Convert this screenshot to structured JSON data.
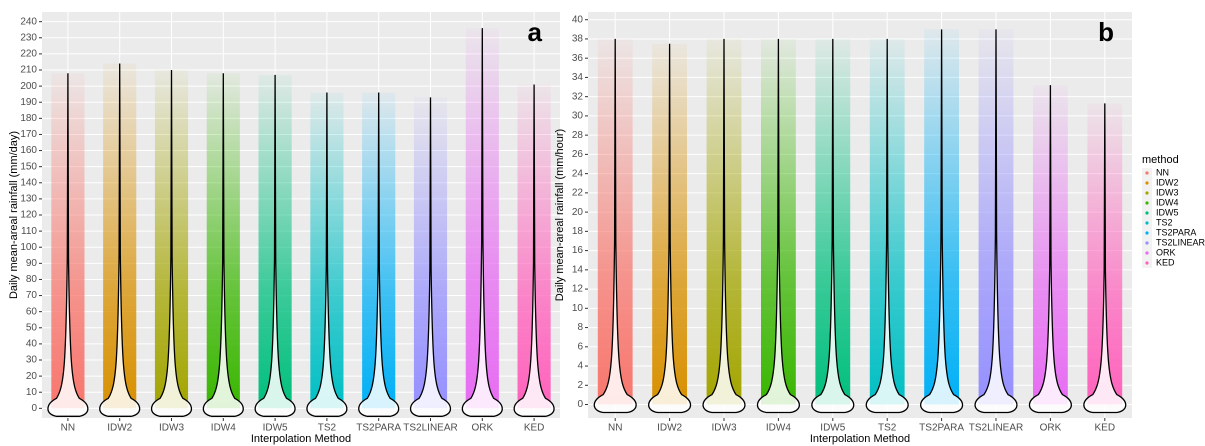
{
  "chart_data": [
    {
      "type": "violin",
      "annotation": "a",
      "x_label": "Interpolation Method",
      "y_label": "Daily mean-areal rainfall (mm/day)",
      "categories": [
        "NN",
        "IDW2",
        "IDW3",
        "IDW4",
        "IDW5",
        "TS2",
        "TS2PARA",
        "TS2LINEAR",
        "ORK",
        "KED"
      ],
      "colors": [
        "#F8766D",
        "#D89000",
        "#A3A500",
        "#39B600",
        "#00BF7D",
        "#00BFC4",
        "#00B0F6",
        "#9590FF",
        "#E76BF3",
        "#FF62BC"
      ],
      "values": [
        208,
        214,
        210,
        208,
        207,
        196,
        196,
        193,
        236,
        201
      ],
      "ylim": [
        -6,
        246
      ],
      "yticks": [
        0,
        10,
        20,
        30,
        40,
        50,
        60,
        70,
        80,
        90,
        100,
        110,
        120,
        130,
        140,
        150,
        160,
        170,
        180,
        190,
        200,
        210,
        220,
        230,
        240
      ],
      "grid": true
    },
    {
      "type": "violin",
      "annotation": "b",
      "x_label": "Interpolation Method",
      "y_label": "Daily mean-areal rainfall (mm/hour)",
      "categories": [
        "NN",
        "IDW2",
        "IDW3",
        "IDW4",
        "IDW5",
        "TS2",
        "TS2PARA",
        "TS2LINEAR",
        "ORK",
        "KED"
      ],
      "colors": [
        "#F8766D",
        "#D89000",
        "#A3A500",
        "#39B600",
        "#00BF7D",
        "#00BFC4",
        "#00B0F6",
        "#9590FF",
        "#E76BF3",
        "#FF62BC"
      ],
      "values": [
        38,
        37.5,
        38,
        38,
        38,
        38,
        39,
        39,
        33.2,
        31.3
      ],
      "ylim": [
        -1.4,
        40.8
      ],
      "yticks": [
        0,
        2,
        4,
        6,
        8,
        10,
        12,
        14,
        16,
        18,
        20,
        22,
        24,
        26,
        28,
        30,
        32,
        34,
        36,
        38,
        40
      ],
      "grid": true,
      "legend": {
        "title": "method",
        "position": "right"
      }
    }
  ]
}
